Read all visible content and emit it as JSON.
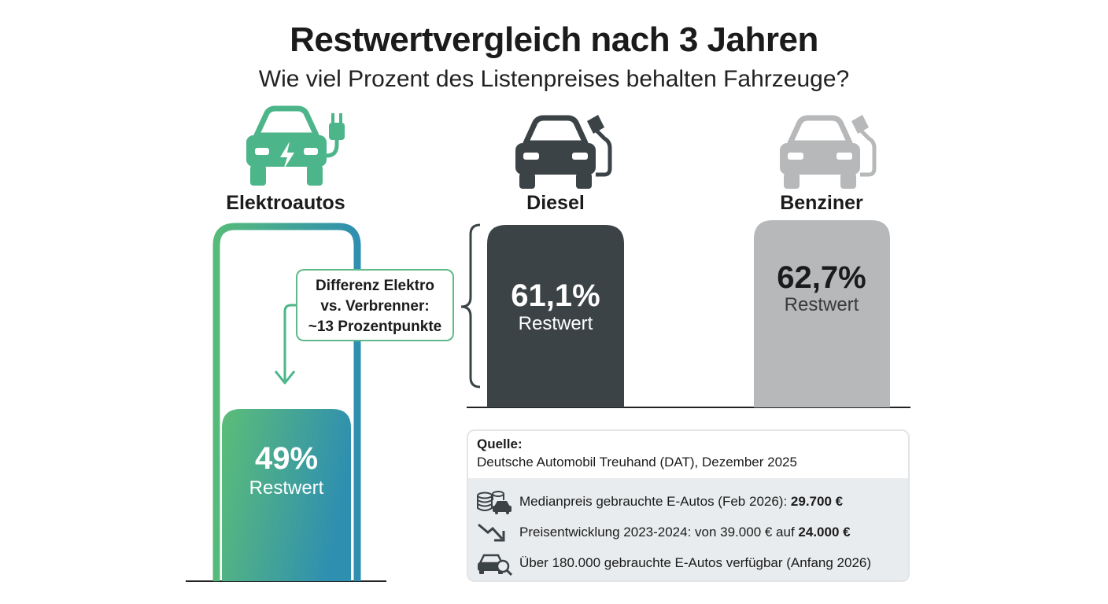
{
  "title": "Restwertvergleich nach 3 Jahren",
  "subtitle": "Wie viel Prozent des Listenpreises behalten Fahrzeuge?",
  "chart_data": {
    "type": "bar",
    "title": "Restwertvergleich nach 3 Jahren",
    "subtitle": "Wie viel Prozent des Listenpreises behalten Fahrzeuge?",
    "categories": [
      "Elektroautos",
      "Diesel",
      "Benziner"
    ],
    "values": [
      49,
      61.1,
      62.7
    ],
    "value_labels": [
      "49%",
      "61,1%",
      "62,7%"
    ],
    "unit_label": "Restwert",
    "xlabel": "",
    "ylabel": "",
    "ylim": [
      0,
      100
    ],
    "grid": false,
    "legend": "none",
    "colors": [
      "#4cb58a",
      "#3c4347",
      "#b6b8ba"
    ],
    "icons": [
      "electric-car-plug-icon",
      "car-fuel-pump-icon",
      "car-fuel-pump-icon"
    ],
    "annotation": {
      "lines": [
        "Differenz Elektro",
        "vs. Verbrenner:",
        "~13 Prozentpunkte"
      ]
    }
  },
  "source": {
    "heading": "Quelle:",
    "text": "Deutsche Automobil Treuhand (DAT), Dezember 2025"
  },
  "facts": [
    {
      "icon": "coins-car-icon",
      "text": "Medianpreis gebrauchte E-Autos (Feb 2026): ",
      "bold": "29.700 €"
    },
    {
      "icon": "trend-down-arrow-icon",
      "text": "Preisentwicklung 2023-2024: von 39.000 € auf ",
      "bold": "24.000 €"
    },
    {
      "icon": "car-search-icon",
      "text": "Über 180.000 gebrauchte E-Autos verfügbar (Anfang 2026)",
      "bold": ""
    }
  ]
}
